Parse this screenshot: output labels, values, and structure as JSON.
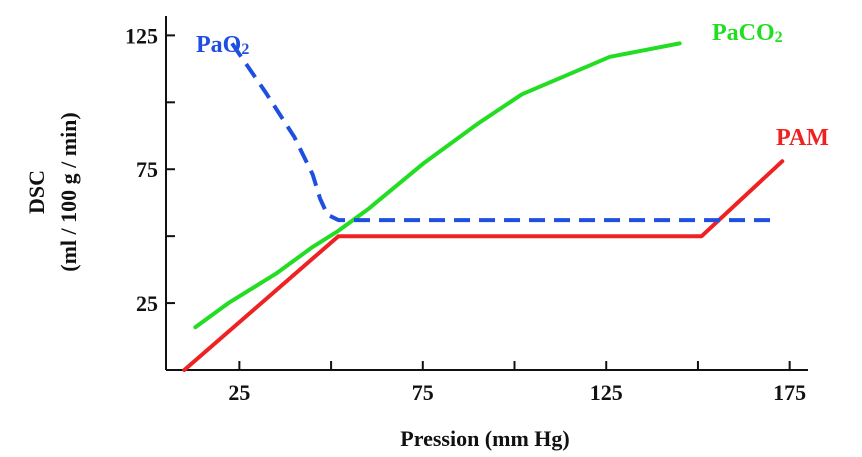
{
  "chart_data": {
    "type": "line",
    "xlabel": "Pression (mm Hg)",
    "ylabel_line1": "DSC",
    "ylabel_line2": "(ml / 100 g / min)",
    "xlim": [
      5,
      180
    ],
    "ylim": [
      0,
      130
    ],
    "x_ticks": [
      25,
      50,
      75,
      100,
      125,
      150,
      175
    ],
    "x_tick_labels": [
      "25",
      "",
      "75",
      "",
      "125",
      "",
      "175"
    ],
    "y_ticks": [
      25,
      50,
      75,
      100,
      125
    ],
    "y_tick_labels": [
      "25",
      "",
      "75",
      "",
      "125"
    ],
    "series": [
      {
        "name": "PaO2",
        "label_main": "PaO",
        "label_sub": "2",
        "color": "#1f4fe0",
        "dashed": true,
        "points": [
          [
            23,
            122
          ],
          [
            32,
            104
          ],
          [
            40,
            87
          ],
          [
            45,
            73
          ],
          [
            47,
            64
          ],
          [
            49,
            58
          ],
          [
            52,
            56
          ],
          [
            60,
            56
          ],
          [
            100,
            56
          ],
          [
            150,
            56
          ],
          [
            170,
            56
          ]
        ]
      },
      {
        "name": "PaCO2",
        "label_main": "PaCO",
        "label_sub": "2",
        "color": "#22dd22",
        "dashed": false,
        "points": [
          [
            13,
            16
          ],
          [
            22,
            25
          ],
          [
            35,
            36
          ],
          [
            45,
            46
          ],
          [
            52,
            52
          ],
          [
            60,
            60
          ],
          [
            75,
            77
          ],
          [
            90,
            92
          ],
          [
            102,
            103
          ],
          [
            126,
            117
          ],
          [
            145,
            122
          ]
        ]
      },
      {
        "name": "PAM",
        "label_main": "PAM",
        "label_sub": "",
        "color": "#ee2222",
        "dashed": false,
        "points": [
          [
            10,
            0
          ],
          [
            52,
            50
          ],
          [
            151,
            50
          ],
          [
            173,
            78
          ]
        ]
      }
    ]
  }
}
